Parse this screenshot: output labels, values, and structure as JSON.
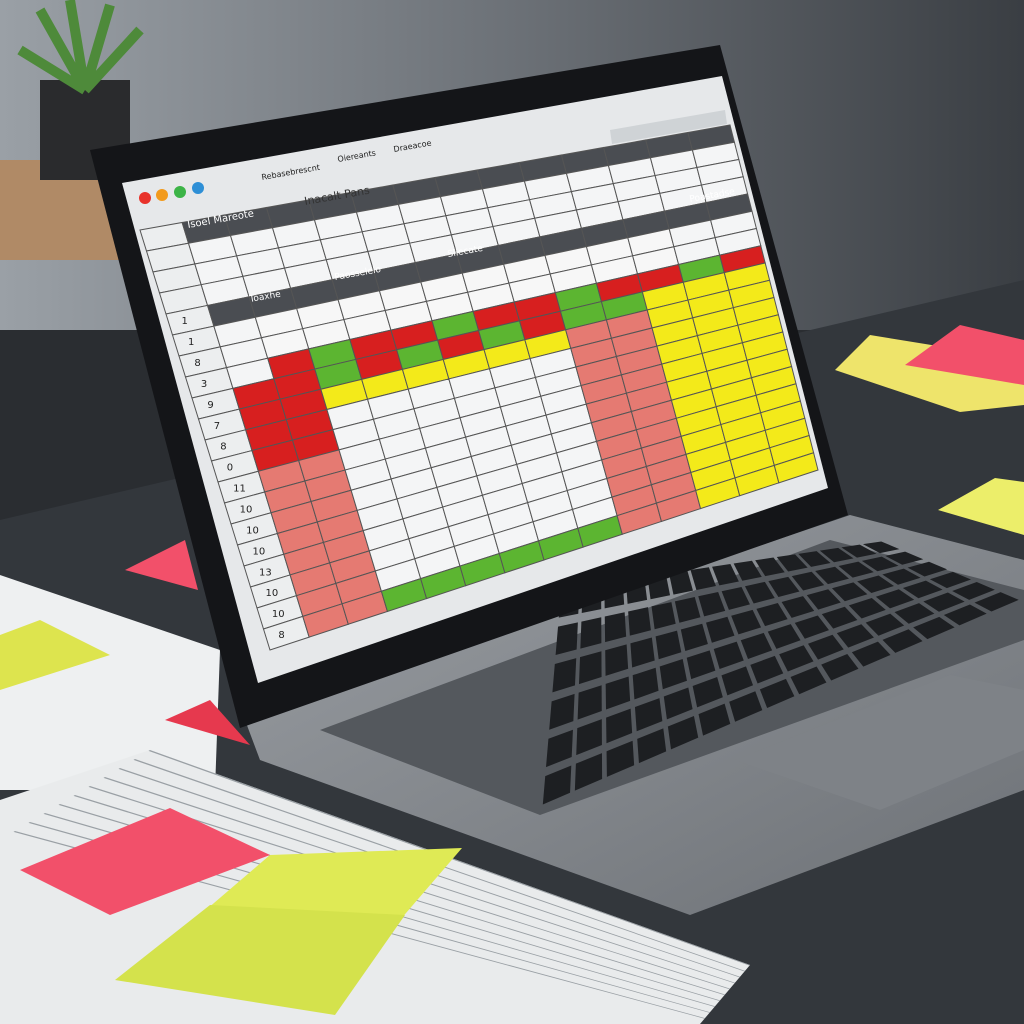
{
  "scene": {
    "description_type": "photo of laptop showing colour-coded spreadsheet on desk",
    "colors": {
      "red": "#d71f1f",
      "salmon": "#e57a72",
      "yellow": "#f3ea1a",
      "green": "#5cb531",
      "header": "#4a4d52",
      "white": "#f4f5f6",
      "sticky_red": "#f2506a",
      "sticky_yellow": "#e2ea5a"
    }
  },
  "spreadsheet": {
    "window_controls": [
      "red",
      "orange",
      "green",
      "blue"
    ],
    "toolbar_buttons": [
      "Rebasebrescnt",
      "Oiereants",
      "Draeacoe"
    ],
    "title": "Inacalt Pans",
    "sheet_header": "Isoel Mareote",
    "section_headers": [
      "Toaxhe",
      "Paosselelo",
      "Sliecate",
      "Poastadse"
    ],
    "row_numbers": [
      "1",
      "1",
      "8",
      "3",
      "9",
      "7",
      "8",
      "0",
      "11",
      "10",
      "10",
      "10",
      "13",
      "10",
      "10",
      "8"
    ]
  }
}
